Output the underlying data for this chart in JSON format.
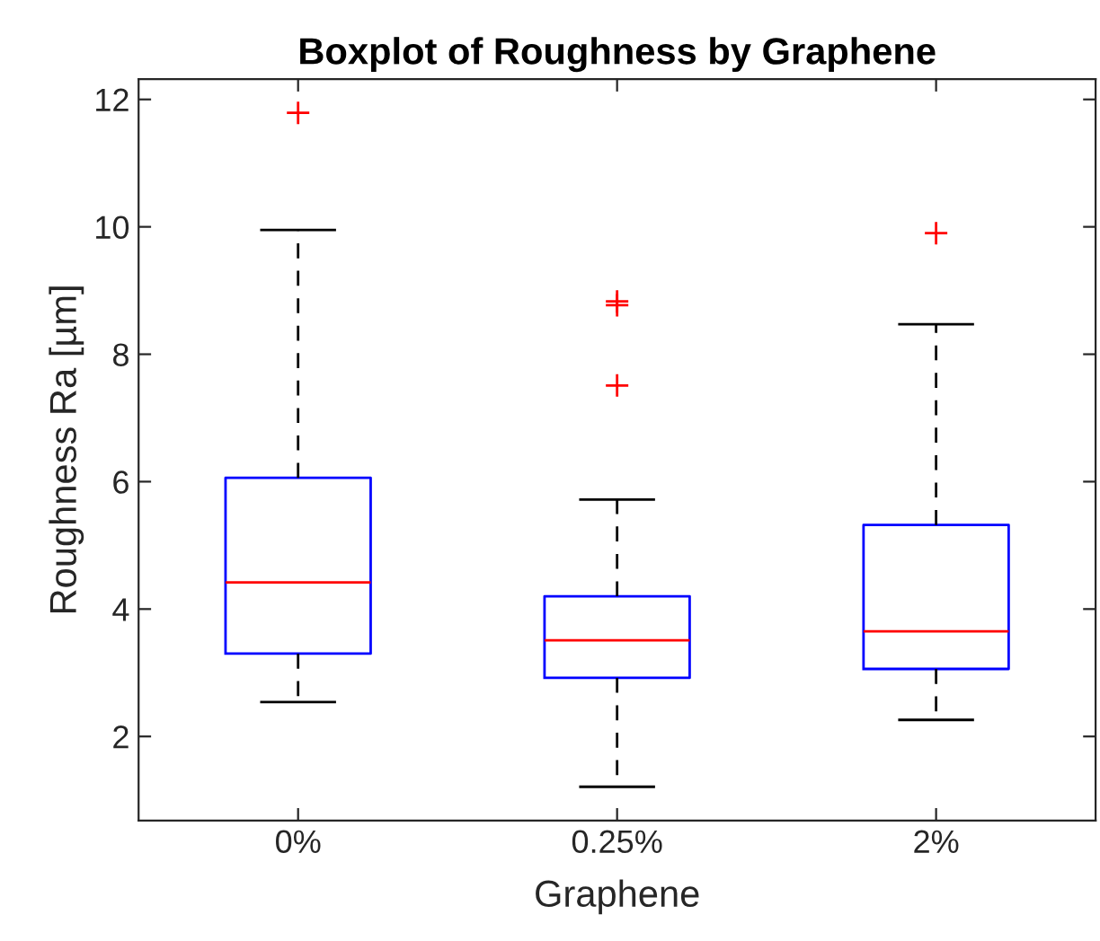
{
  "chart_data": {
    "type": "box",
    "title": "Boxplot of Roughness by Graphene",
    "xlabel": "Graphene",
    "ylabel": "Roughness Ra [µm]",
    "categories": [
      "0%",
      "0.25%",
      "2%"
    ],
    "boxes": [
      {
        "low": 2.54,
        "q1": 3.3,
        "median": 4.42,
        "q3": 6.06,
        "high": 9.95,
        "outliers": [
          11.79
        ]
      },
      {
        "low": 1.21,
        "q1": 2.92,
        "median": 3.51,
        "q3": 4.2,
        "high": 5.72,
        "outliers": [
          8.83,
          8.77,
          7.51
        ]
      },
      {
        "low": 2.26,
        "q1": 3.06,
        "median": 3.65,
        "q3": 5.32,
        "high": 8.47,
        "outliers": [
          9.9
        ]
      }
    ],
    "ylim": [
      0.68,
      12.32
    ],
    "yticks": [
      2,
      4,
      6,
      8,
      10,
      12
    ],
    "grid": false
  }
}
